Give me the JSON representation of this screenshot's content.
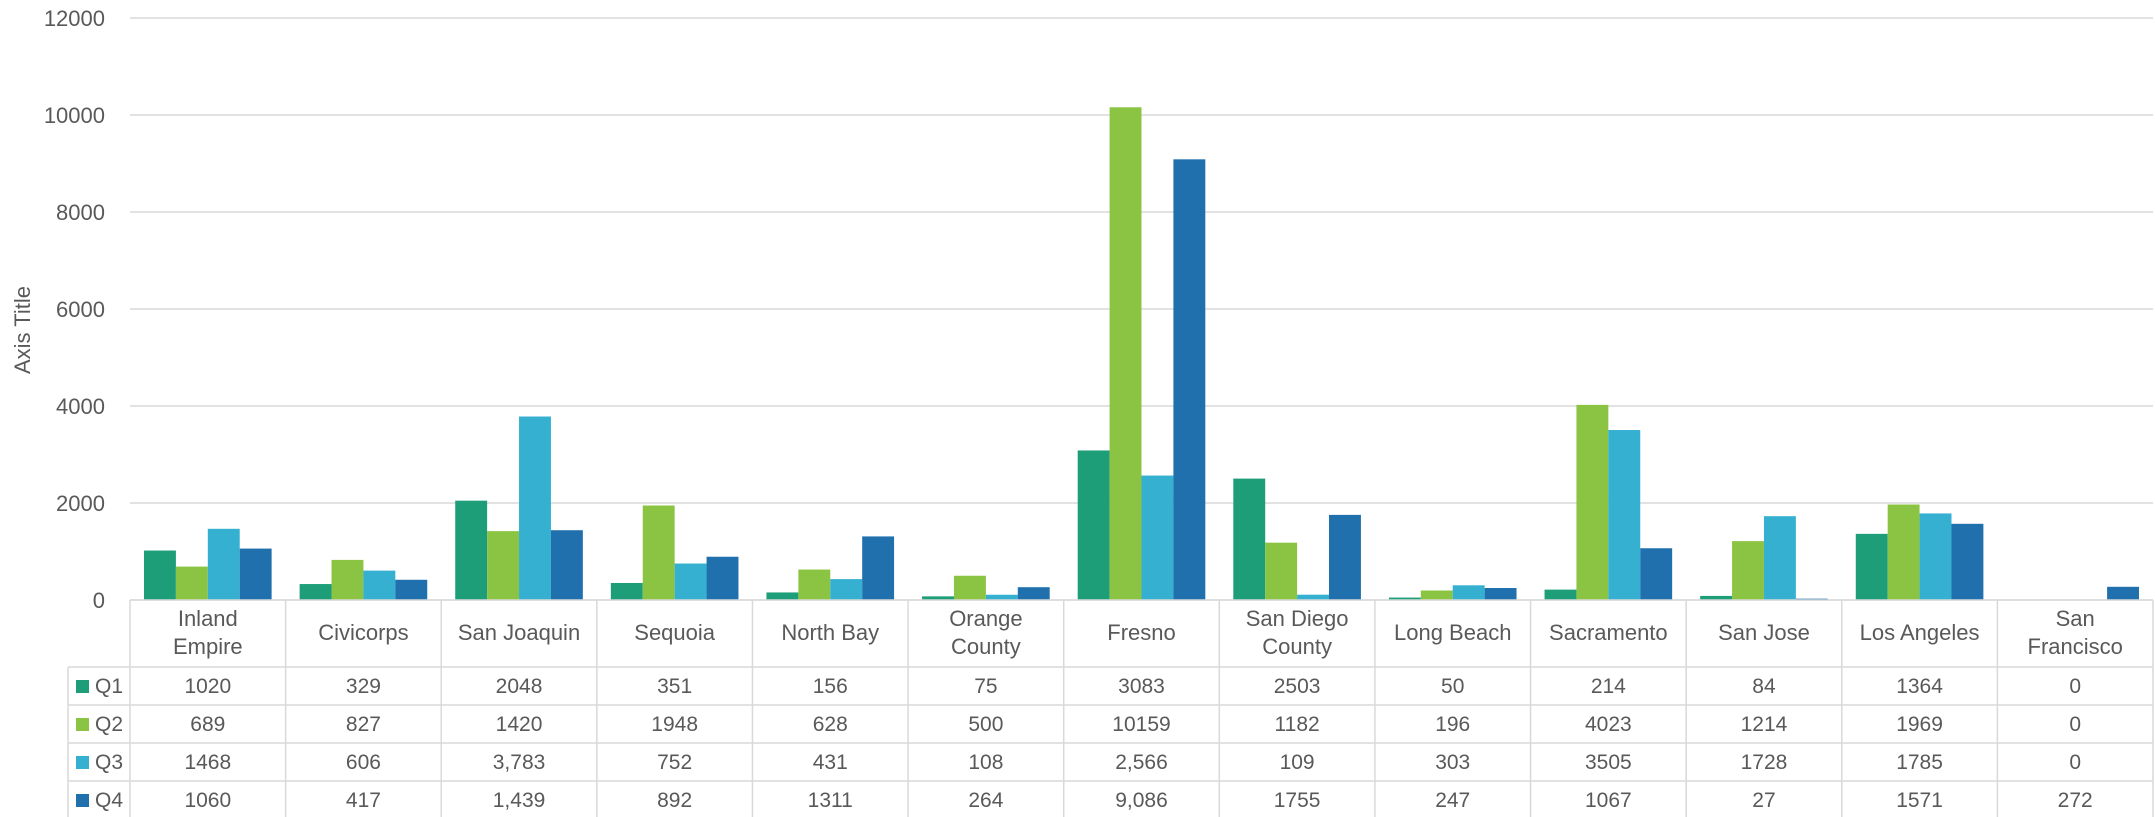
{
  "chart_data": {
    "type": "bar",
    "ylabel": "Axis Title",
    "ylim": [
      0,
      12000
    ],
    "yticks": [
      "0",
      "2000",
      "4000",
      "6000",
      "8000",
      "10000",
      "12000"
    ],
    "grid": true,
    "legend": "data-table",
    "categories": [
      "Inland Empire",
      "Civicorps",
      "San Joaquin",
      "Sequoia",
      "North Bay",
      "Orange County",
      "Fresno",
      "San Diego County",
      "Long Beach",
      "Sacramento",
      "San Jose",
      "Los Angeles",
      "San Francisco"
    ],
    "series": [
      {
        "name": "Q1",
        "color": "#1e9e78",
        "values": [
          1020,
          329,
          2048,
          351,
          156,
          75,
          3083,
          2503,
          50,
          214,
          84,
          1364,
          0
        ],
        "labels": [
          "1020",
          "329",
          "2048",
          "351",
          "156",
          "75",
          "3083",
          "2503",
          "50",
          "214",
          "84",
          "1364",
          "0"
        ]
      },
      {
        "name": "Q2",
        "color": "#8bc443",
        "values": [
          689,
          827,
          1420,
          1948,
          628,
          500,
          10159,
          1182,
          196,
          4023,
          1214,
          1969,
          0
        ],
        "labels": [
          "689",
          "827",
          "1420",
          "1948",
          "628",
          "500",
          "10159",
          "1182",
          "196",
          "4023",
          "1214",
          "1969",
          "0"
        ]
      },
      {
        "name": "Q3",
        "color": "#35b0d1",
        "values": [
          1468,
          606,
          3783,
          752,
          431,
          108,
          2566,
          109,
          303,
          3505,
          1728,
          1785,
          0
        ],
        "labels": [
          "1468",
          "606",
          "3,783",
          "752",
          "431",
          "108",
          "2,566",
          "109",
          "303",
          "3505",
          "1728",
          "1785",
          "0"
        ]
      },
      {
        "name": "Q4",
        "color": "#1f70ad",
        "values": [
          1060,
          417,
          1439,
          892,
          1311,
          264,
          9086,
          1755,
          247,
          1067,
          27,
          1571,
          272
        ],
        "labels": [
          "1060",
          "417",
          "1,439",
          "892",
          "1311",
          "264",
          "9,086",
          "1755",
          "247",
          "1067",
          "27",
          "1571",
          "272"
        ]
      }
    ]
  }
}
